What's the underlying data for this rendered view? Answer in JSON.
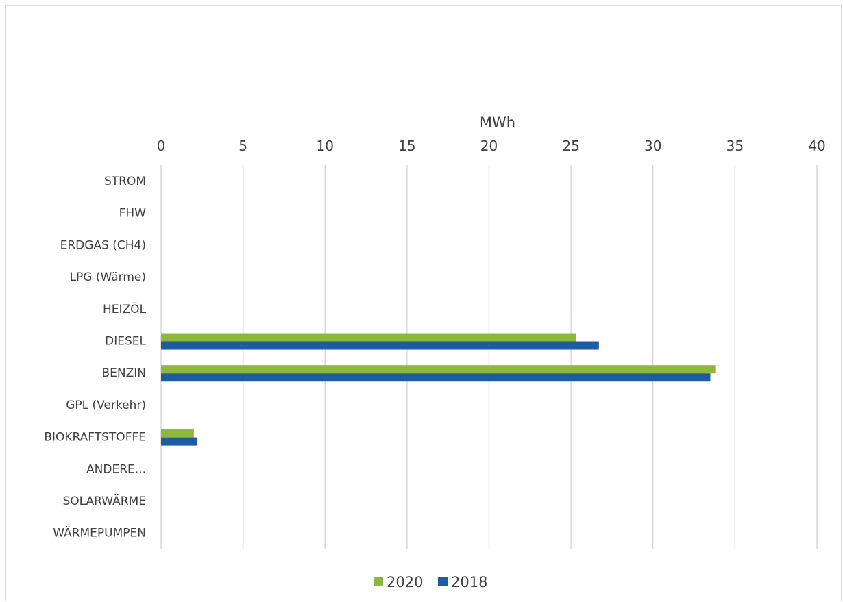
{
  "colors": {
    "2020": "#8fb83b",
    "2018": "#1f5ba3",
    "grid": "#d9d9d9",
    "text": "#404040"
  },
  "chart_data": {
    "type": "bar",
    "orientation": "horizontal",
    "xlabel": "MWh",
    "xlim": [
      0,
      40
    ],
    "x_ticks": [
      "0",
      "5",
      "10",
      "15",
      "20",
      "25",
      "30",
      "35",
      "40"
    ],
    "x_axis_position": "top",
    "grid": true,
    "legend_position": "bottom",
    "categories": [
      "STROM",
      "FHW",
      "ERDGAS (CH4)",
      "LPG (Wärme)",
      "HEIZÖL",
      "DIESEL",
      "BENZIN",
      "GPL (Verkehr)",
      "BIOKRAFTSTOFFE",
      "ANDERE...",
      "SOLARWÄRME",
      "WÄRMEPUMPEN"
    ],
    "series": [
      {
        "name": "2020",
        "color": "#8fb83b",
        "values": [
          0,
          0,
          0,
          0,
          0,
          25.3,
          33.8,
          0,
          2.0,
          0,
          0,
          0
        ]
      },
      {
        "name": "2018",
        "color": "#1f5ba3",
        "values": [
          0,
          0,
          0,
          0,
          0,
          26.7,
          33.5,
          0,
          2.2,
          0,
          0,
          0
        ]
      }
    ]
  }
}
